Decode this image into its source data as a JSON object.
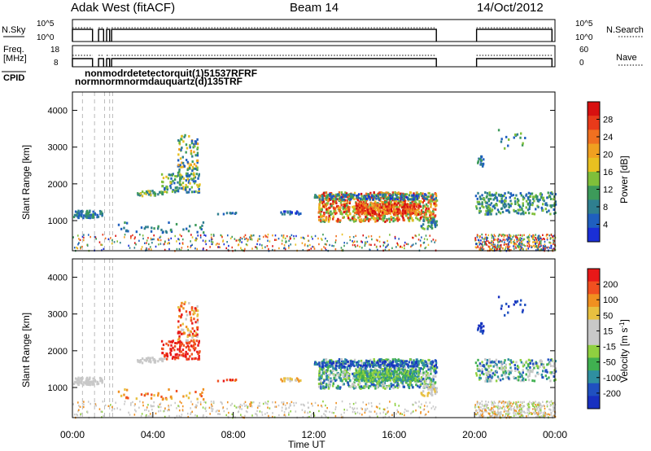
{
  "header": {
    "station": "Adak West (fitACF)",
    "beam": "Beam 14",
    "date": "14/Oct/2012"
  },
  "colors": {
    "power_scale": [
      "#1a2fd6",
      "#1f5fbf",
      "#2f7f8f",
      "#3d9a5a",
      "#7fbf3a",
      "#e8c020",
      "#f0a020",
      "#f07020",
      "#e83a1a",
      "#d81010"
    ],
    "velocity_scale": [
      "#e81818",
      "#f05020",
      "#f09020",
      "#e8c040",
      "#c8c8c8",
      "#c8c8c8",
      "#8fd040",
      "#40b050",
      "#2f8fa0",
      "#2050c0",
      "#1830c0"
    ],
    "ground_scatter": "#c8c8c8"
  },
  "chart_data": [
    {
      "panel": "N.Sky / N.Search",
      "type": "line",
      "left_label": "N.Sky",
      "right_label": "N.Search",
      "left_ticks": [
        "10^5",
        "10^0"
      ],
      "right_ticks": [
        "10^5",
        "10^0"
      ],
      "segments": [
        {
          "x0": 0.0,
          "x1": 1.0,
          "level": 0.7
        },
        {
          "x0": 1.3,
          "x1": 1.55,
          "level": 0.7
        },
        {
          "x0": 1.7,
          "x1": 1.85,
          "level": 0.7
        },
        {
          "x0": 1.95,
          "x1": 18.1,
          "level": 0.7
        },
        {
          "x0": 20.1,
          "x1": 23.85,
          "level": 0.7
        }
      ]
    },
    {
      "panel": "Freq. / Nave",
      "type": "line",
      "left_label": "Freq. [MHz]",
      "right_label": "Nave",
      "left_ticks": [
        "18",
        "8"
      ],
      "right_ticks": [
        "60",
        "0"
      ]
    },
    {
      "panel": "CPID",
      "type": "table",
      "label": "CPID",
      "text_top": "nonn●●●●●●●●●●●●●●●●●●●●●",
      "text_top_markup": "nonmodrdetetectorquit(1)51537RFRF",
      "text_bottom": "normnormnormdauquartz(d)135TRF"
    },
    {
      "panel": "Power",
      "type": "heatmap",
      "xlabel": "Time UT",
      "ylabel": "Slant Range [km]",
      "x_range_hours": [
        0,
        24
      ],
      "y_range_km": [
        180,
        4500
      ],
      "y_ticks": [
        1000,
        2000,
        3000,
        4000
      ],
      "colorbar_label": "Power [dB]",
      "colorbar_ticks": [
        4,
        8,
        12,
        16,
        20,
        24,
        28
      ],
      "colorbar_range": [
        0,
        30
      ]
    },
    {
      "panel": "Velocity",
      "type": "heatmap",
      "xlabel": "Time UT",
      "ylabel": "Slant Range [km]",
      "x_range_hours": [
        0,
        24
      ],
      "y_range_km": [
        180,
        4500
      ],
      "y_ticks": [
        1000,
        2000,
        3000,
        4000
      ],
      "colorbar_label": "Velocity [m s",
      "colorbar_label_sup": "-1",
      "colorbar_label_end": "]",
      "colorbar_ticks": [
        200,
        100,
        50,
        15,
        -15,
        -50,
        -100,
        -200
      ],
      "x_ticks": [
        "00:00",
        "04:00",
        "08:00",
        "12:00",
        "16:00",
        "20:00",
        "00:00"
      ],
      "x_tick_hours": [
        0,
        4,
        8,
        12,
        16,
        20,
        24
      ]
    }
  ]
}
